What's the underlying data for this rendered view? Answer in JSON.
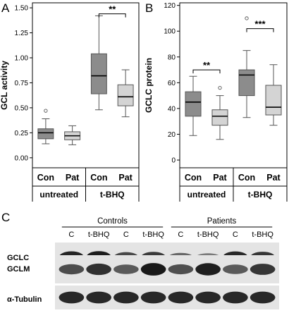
{
  "panels": {
    "a": "A",
    "b": "B",
    "c": "C"
  },
  "chart_data": [
    {
      "type": "box",
      "panel": "A",
      "title": "",
      "ylabel": "GCL activity",
      "ylim": [
        -0.1,
        1.55
      ],
      "yticks": [
        0.0,
        0.25,
        0.5,
        0.75,
        1.0,
        1.25,
        1.5
      ],
      "ytick_labels": [
        "0.00",
        "0.25",
        "0.50",
        "0.75",
        "1.00",
        "1.25",
        "1.50"
      ],
      "groups": [
        "untreated",
        "t-BHQ"
      ],
      "categories": [
        "Con",
        "Pat",
        "Con",
        "Pat"
      ],
      "series_colors": {
        "Con": "#8c8c8c",
        "Pat": "#d4d4d4"
      },
      "boxes": [
        {
          "group": "untreated",
          "name": "Con",
          "whisker_low": 0.14,
          "q1": 0.19,
          "median": 0.25,
          "q3": 0.29,
          "whisker_high": 0.39,
          "outliers": [
            0.47
          ]
        },
        {
          "group": "untreated",
          "name": "Pat",
          "whisker_low": 0.13,
          "q1": 0.18,
          "median": 0.22,
          "q3": 0.26,
          "whisker_high": 0.32,
          "outliers": []
        },
        {
          "group": "t-BHQ",
          "name": "Con",
          "whisker_low": 0.48,
          "q1": 0.64,
          "median": 0.82,
          "q3": 1.04,
          "whisker_high": 1.42,
          "outliers": []
        },
        {
          "group": "t-BHQ",
          "name": "Pat",
          "whisker_low": 0.41,
          "q1": 0.52,
          "median": 0.61,
          "q3": 0.73,
          "whisker_high": 0.88,
          "outliers": []
        }
      ],
      "significance": [
        {
          "between": [
            2,
            3
          ],
          "label": "**",
          "y": 1.44
        }
      ]
    },
    {
      "type": "box",
      "panel": "B",
      "title": "",
      "ylabel": "GCLC protein",
      "ylim": [
        -6,
        122
      ],
      "yticks": [
        0,
        20,
        40,
        60,
        80,
        100,
        120
      ],
      "ytick_labels": [
        "0",
        "20",
        "40",
        "60",
        "80",
        "100",
        "120"
      ],
      "groups": [
        "untreated",
        "t-BHQ"
      ],
      "categories": [
        "Con",
        "Pat",
        "Con",
        "Pat"
      ],
      "series_colors": {
        "Con": "#8c8c8c",
        "Pat": "#d4d4d4"
      },
      "boxes": [
        {
          "group": "untreated",
          "name": "Con",
          "whisker_low": 19,
          "q1": 34,
          "median": 45,
          "q3": 53,
          "whisker_high": 65,
          "outliers": []
        },
        {
          "group": "untreated",
          "name": "Pat",
          "whisker_low": 16,
          "q1": 27,
          "median": 34,
          "q3": 39,
          "whisker_high": 50,
          "outliers": [
            56
          ]
        },
        {
          "group": "t-BHQ",
          "name": "Con",
          "whisker_low": 33,
          "q1": 50,
          "median": 66,
          "q3": 70,
          "whisker_high": 85,
          "outliers": [
            110
          ]
        },
        {
          "group": "t-BHQ",
          "name": "Pat",
          "whisker_low": 27,
          "q1": 35,
          "median": 41,
          "q3": 58,
          "whisker_high": 74,
          "outliers": []
        }
      ],
      "significance": [
        {
          "between": [
            0,
            1
          ],
          "label": "**",
          "y": 70
        },
        {
          "between": [
            2,
            3
          ],
          "label": "***",
          "y": 102
        }
      ]
    }
  ],
  "blot": {
    "group_headers": [
      "Controls",
      "Patients"
    ],
    "lane_labels": [
      "C",
      "t-BHQ",
      "C",
      "t-BHQ",
      "C",
      "t-BHQ",
      "C",
      "t-BHQ"
    ],
    "rows": [
      {
        "label": "GCLC",
        "intensities": [
          0.92,
          0.96,
          0.72,
          0.8,
          0.55,
          0.45,
          0.9,
          0.82
        ]
      },
      {
        "label": "GCLM",
        "intensities": [
          0.7,
          0.85,
          0.62,
          0.98,
          0.68,
          0.95,
          0.62,
          0.82
        ]
      },
      {
        "label": "α-Tubulin",
        "intensities": [
          0.9,
          0.9,
          0.9,
          0.9,
          0.9,
          0.9,
          0.9,
          0.9
        ]
      }
    ]
  }
}
